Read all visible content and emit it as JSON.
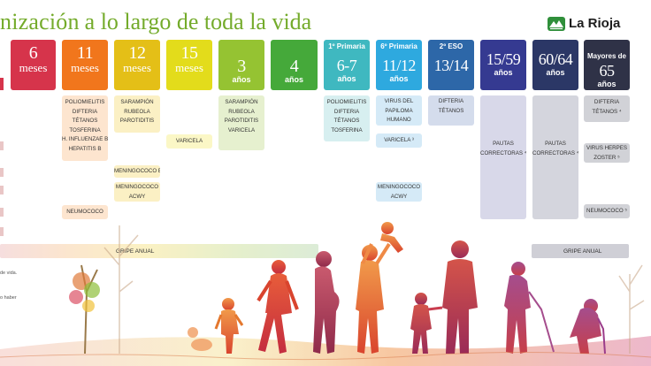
{
  "title": {
    "part1": "nización",
    "part2": "a lo largo de toda la vida"
  },
  "logo": {
    "text": "La Rioja",
    "icon": "la-rioja-logo-icon"
  },
  "colors": {
    "title_green": "#74ab2b",
    "m6": "#d6344b",
    "m11": "#f1761c",
    "m12": "#e4bf17",
    "m15": "#e3dc1b",
    "y3": "#95c332",
    "y4": "#45a93a",
    "y67": "#3fb8c0",
    "y1112": "#2ea9df",
    "y1314": "#2d67a8",
    "y1559": "#353a91",
    "y6064": "#2b3766",
    "y65": "#2f3247"
  },
  "ages": [
    {
      "num": "6",
      "unit": "meses"
    },
    {
      "num": "11",
      "unit": "meses"
    },
    {
      "num": "12",
      "unit": "meses"
    },
    {
      "num": "15",
      "unit": "meses"
    },
    {
      "num": "3",
      "unit": "años"
    },
    {
      "num": "4",
      "unit": "años"
    },
    {
      "pre": "1º Primaria",
      "num": "6-7",
      "unit": "años"
    },
    {
      "pre": "6º Primaria",
      "num": "11/12",
      "unit": "años"
    },
    {
      "pre": "2º ESO",
      "num": "13/14",
      "unit": ""
    },
    {
      "num": "15/59",
      "unit": "años"
    },
    {
      "num": "60/64",
      "unit": "años"
    },
    {
      "pre": "Mayores de",
      "num": "65",
      "unit": "años"
    }
  ],
  "vaccines": {
    "m11_main": [
      "POLIOMIELITIS",
      "DIFTERIA",
      "TÉTANOS",
      "TOSFERINA",
      "H. INFLUENZAE b",
      "HEPATITIS B"
    ],
    "m11_neumo": "NEUMOCOCO",
    "m12_main": [
      "SARAMPIÓN",
      "RUBEOLA",
      "PAROTIDITIS"
    ],
    "m12_menb": "MENINGOCOCO B",
    "m12_menacwy": [
      "MENINGOCOCO",
      "ACWY"
    ],
    "m15_varicela": "VARICELA",
    "y3_main": [
      "SARAMPIÓN",
      "RUBEOLA",
      "PAROTIDITIS",
      "VARICELA"
    ],
    "y67_main": [
      "POLIOMIELITIS",
      "DIFTERIA",
      "TÉTANOS",
      "TOSFERINA"
    ],
    "y1112_main": [
      "VIRUS DEL",
      "PAPILOMA",
      "HUMANO"
    ],
    "y1112_varicela": "VARICELA ³",
    "y1112_men": [
      "MENINGOCOCO",
      "ACWY"
    ],
    "y1314_main": [
      "DIFTERIA",
      "TÉTANOS"
    ],
    "y1559_main": [
      "PAUTAS",
      "CORRECTORAS ⁴"
    ],
    "y6064_main": [
      "PAUTAS",
      "CORRECTORAS ⁴"
    ],
    "y65_main": [
      "DIFTERIA",
      "TÉTANOS ⁴"
    ],
    "y65_herpes": [
      "VIRUS HERPES",
      "ZOSTER ⁵"
    ],
    "y65_neumo": "NEUMOCOCO ⁵",
    "gripe_left": "GRIPE ANUAL",
    "gripe_right": "GRIPE ANUAL"
  },
  "left_fragments": {
    "a": "de vida.",
    "b": "o haber"
  }
}
